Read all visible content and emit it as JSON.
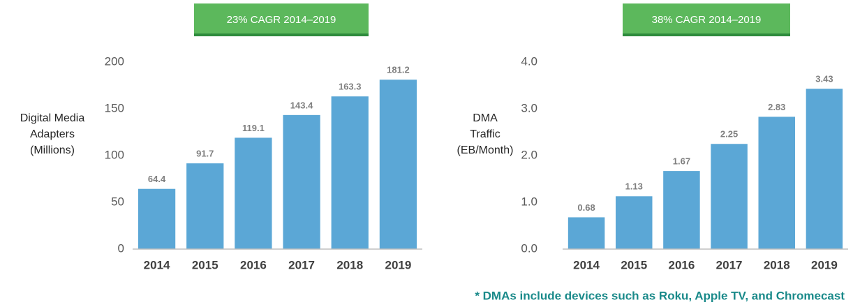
{
  "chart_data": [
    {
      "type": "bar",
      "annotation": "23% CAGR 2014–2019",
      "ylabel": [
        "Digital Media",
        "Adapters",
        "(Millions)"
      ],
      "categories": [
        "2014",
        "2015",
        "2016",
        "2017",
        "2018",
        "2019"
      ],
      "values": [
        64.4,
        91.7,
        119.1,
        143.4,
        163.3,
        181.2
      ],
      "color": "#5ba7d6",
      "ylim": [
        0,
        200
      ],
      "yticks": [
        0,
        50,
        100,
        150,
        200
      ]
    },
    {
      "type": "bar",
      "annotation": "38% CAGR 2014–2019",
      "ylabel": [
        "DMA",
        "Traffic",
        "(EB/Month)"
      ],
      "categories": [
        "2014",
        "2015",
        "2016",
        "2017",
        "2018",
        "2019"
      ],
      "values": [
        0.68,
        1.13,
        1.67,
        2.25,
        2.83,
        3.43
      ],
      "color": "#5ba7d6",
      "ylim": [
        0,
        4
      ],
      "yticks": [
        {
          "value": 0,
          "label": "0.0"
        },
        {
          "value": 1,
          "label": "1.0"
        },
        {
          "value": 2,
          "label": "2.0"
        },
        {
          "value": 3,
          "label": "3.0"
        },
        {
          "value": 4,
          "label": "4.0"
        }
      ]
    }
  ],
  "footnote": "* DMAs include devices such as Roku, Apple TV, and Chromecast"
}
